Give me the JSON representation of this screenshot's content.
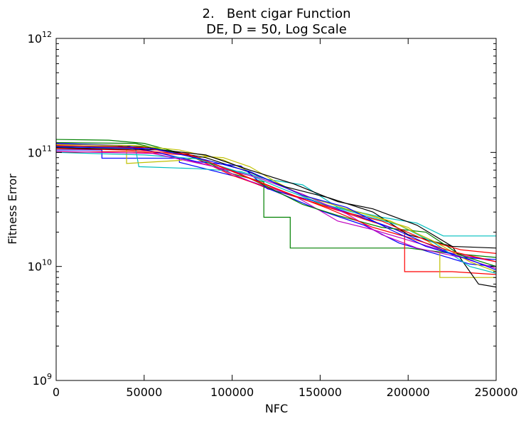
{
  "chart_data": {
    "type": "line",
    "title_line1": "2.   Bent cigar Function",
    "title_line2": "DE, D = 50, Log Scale",
    "xlabel": "NFC",
    "ylabel": "Fitness Error",
    "xlim": [
      0,
      250000
    ],
    "ylim": [
      1000000000,
      1000000000000
    ],
    "yscale": "log",
    "grid": false,
    "legend": "none",
    "x_ticks": [
      {
        "value": 0,
        "label": "0"
      },
      {
        "value": 50000,
        "label": "50000"
      },
      {
        "value": 100000,
        "label": "100000"
      },
      {
        "value": 150000,
        "label": "150000"
      },
      {
        "value": 200000,
        "label": "200000"
      },
      {
        "value": 250000,
        "label": "250000"
      }
    ],
    "y_ticks": [
      {
        "value": 1000000000,
        "base": "10",
        "exp": "9"
      },
      {
        "value": 10000000000,
        "base": "10",
        "exp": "10"
      },
      {
        "value": 100000000000,
        "base": "10",
        "exp": "11"
      },
      {
        "value": 1000000000000,
        "base": "10",
        "exp": "12"
      }
    ],
    "series": [
      {
        "color": "#0000ff",
        "points": [
          [
            0,
            105000000000.0
          ],
          [
            26000,
            105000000000.0
          ],
          [
            26000,
            89000000000.0
          ],
          [
            70000,
            89000000000.0
          ],
          [
            70000,
            82000000000.0
          ],
          [
            105000,
            60000000000.0
          ],
          [
            130000,
            42000000000.0
          ],
          [
            150000,
            31000000000.0
          ],
          [
            175000,
            23000000000.0
          ],
          [
            195000,
            16000000000.0
          ],
          [
            215000,
            13000000000.0
          ],
          [
            235000,
            10500000000.0
          ],
          [
            250000,
            10000000000.0
          ]
        ]
      },
      {
        "color": "#008000",
        "points": [
          [
            0,
            130000000000.0
          ],
          [
            30000,
            128000000000.0
          ],
          [
            50000,
            120000000000.0
          ],
          [
            80000,
            90000000000.0
          ],
          [
            100000,
            65000000000.0
          ],
          [
            118000,
            55000000000.0
          ],
          [
            118000,
            27000000000.0
          ],
          [
            133000,
            27000000000.0
          ],
          [
            133000,
            14500000000.0
          ],
          [
            200000,
            14500000000.0
          ],
          [
            225000,
            13000000000.0
          ],
          [
            250000,
            12000000000.0
          ]
        ]
      },
      {
        "color": "#ff0000",
        "points": [
          [
            0,
            100000000000.0
          ],
          [
            40000,
            102000000000.0
          ],
          [
            75000,
            95000000000.0
          ],
          [
            100000,
            63000000000.0
          ],
          [
            125000,
            46000000000.0
          ],
          [
            150000,
            35000000000.0
          ],
          [
            175000,
            26000000000.0
          ],
          [
            198000,
            20000000000.0
          ],
          [
            198000,
            9000000000.0
          ],
          [
            225000,
            9000000000.0
          ],
          [
            250000,
            8500000000.0
          ]
        ]
      },
      {
        "color": "#00bfbf",
        "points": [
          [
            0,
            112000000000.0
          ],
          [
            45000,
            110000000000.0
          ],
          [
            47000,
            75000000000.0
          ],
          [
            80000,
            72000000000.0
          ],
          [
            105000,
            68000000000.0
          ],
          [
            120000,
            58000000000.0
          ],
          [
            140000,
            52000000000.0
          ],
          [
            160000,
            33000000000.0
          ],
          [
            185000,
            27000000000.0
          ],
          [
            205000,
            24000000000.0
          ],
          [
            220000,
            18500000000.0
          ],
          [
            250000,
            18500000000.0
          ]
        ]
      },
      {
        "color": "#bf00bf",
        "points": [
          [
            0,
            118000000000.0
          ],
          [
            35000,
            115000000000.0
          ],
          [
            60000,
            98000000000.0
          ],
          [
            90000,
            75000000000.0
          ],
          [
            110000,
            56000000000.0
          ],
          [
            135000,
            42000000000.0
          ],
          [
            160000,
            25000000000.0
          ],
          [
            180000,
            21000000000.0
          ],
          [
            200000,
            17000000000.0
          ],
          [
            225000,
            13000000000.0
          ],
          [
            250000,
            11000000000.0
          ]
        ]
      },
      {
        "color": "#bfbf00",
        "points": [
          [
            0,
            110000000000.0
          ],
          [
            40000,
            105000000000.0
          ],
          [
            40000,
            80000000000.0
          ],
          [
            70000,
            85000000000.0
          ],
          [
            85000,
            92000000000.0
          ],
          [
            95000,
            90000000000.0
          ],
          [
            110000,
            75000000000.0
          ],
          [
            125000,
            55000000000.0
          ],
          [
            150000,
            35000000000.0
          ],
          [
            175000,
            29000000000.0
          ],
          [
            200000,
            22000000000.0
          ],
          [
            218000,
            14000000000.0
          ],
          [
            218000,
            8000000000.0
          ],
          [
            250000,
            8000000000.0
          ]
        ]
      },
      {
        "color": "#000000",
        "points": [
          [
            0,
            114000000000.0
          ],
          [
            50000,
            112000000000.0
          ],
          [
            85000,
            90000000000.0
          ],
          [
            110000,
            67000000000.0
          ],
          [
            130000,
            50000000000.0
          ],
          [
            155000,
            40000000000.0
          ],
          [
            180000,
            30000000000.0
          ],
          [
            200000,
            19000000000.0
          ],
          [
            225000,
            15000000000.0
          ],
          [
            240000,
            7000000000.0
          ],
          [
            250000,
            6600000000.0
          ]
        ]
      },
      {
        "color": "#0000ff",
        "points": [
          [
            0,
            120000000000.0
          ],
          [
            40000,
            115000000000.0
          ],
          [
            80000,
            83000000000.0
          ],
          [
            105000,
            76000000000.0
          ],
          [
            120000,
            48000000000.0
          ],
          [
            145000,
            38000000000.0
          ],
          [
            165000,
            30000000000.0
          ],
          [
            190000,
            22000000000.0
          ],
          [
            210000,
            16000000000.0
          ],
          [
            230000,
            12000000000.0
          ],
          [
            250000,
            11500000000.0
          ]
        ]
      },
      {
        "color": "#008000",
        "points": [
          [
            0,
            122000000000.0
          ],
          [
            45000,
            120000000000.0
          ],
          [
            75000,
            93000000000.0
          ],
          [
            100000,
            70000000000.0
          ],
          [
            120000,
            50000000000.0
          ],
          [
            140000,
            35000000000.0
          ],
          [
            160000,
            28000000000.0
          ],
          [
            185000,
            22000000000.0
          ],
          [
            210000,
            20000000000.0
          ],
          [
            230000,
            12500000000.0
          ],
          [
            250000,
            10000000000.0
          ]
        ]
      },
      {
        "color": "#ff0000",
        "points": [
          [
            0,
            108000000000.0
          ],
          [
            40000,
            105000000000.0
          ],
          [
            75000,
            97000000000.0
          ],
          [
            95000,
            73000000000.0
          ],
          [
            115000,
            55000000000.0
          ],
          [
            140000,
            39000000000.0
          ],
          [
            160000,
            31000000000.0
          ],
          [
            185000,
            25000000000.0
          ],
          [
            210000,
            17000000000.0
          ],
          [
            230000,
            14000000000.0
          ],
          [
            250000,
            13000000000.0
          ]
        ]
      },
      {
        "color": "#00bfbf",
        "points": [
          [
            0,
            100000000000.0
          ],
          [
            50000,
            95000000000.0
          ],
          [
            80000,
            88000000000.0
          ],
          [
            110000,
            63000000000.0
          ],
          [
            130000,
            47000000000.0
          ],
          [
            150000,
            36000000000.0
          ],
          [
            175000,
            28000000000.0
          ],
          [
            195000,
            23000000000.0
          ],
          [
            215000,
            16000000000.0
          ],
          [
            235000,
            10000000000.0
          ],
          [
            250000,
            8700000000.0
          ]
        ]
      },
      {
        "color": "#bf00bf",
        "points": [
          [
            0,
            102000000000.0
          ],
          [
            55000,
            98000000000.0
          ],
          [
            90000,
            75000000000.0
          ],
          [
            115000,
            60000000000.0
          ],
          [
            140000,
            43000000000.0
          ],
          [
            165000,
            29000000000.0
          ],
          [
            185000,
            19000000000.0
          ],
          [
            205000,
            14500000000.0
          ],
          [
            230000,
            12000000000.0
          ],
          [
            250000,
            9600000000.0
          ]
        ]
      },
      {
        "color": "#bfbf00",
        "points": [
          [
            0,
            117000000000.0
          ],
          [
            45000,
            115000000000.0
          ],
          [
            70000,
            105000000000.0
          ],
          [
            95000,
            86000000000.0
          ],
          [
            120000,
            58000000000.0
          ],
          [
            140000,
            42000000000.0
          ],
          [
            165000,
            32000000000.0
          ],
          [
            190000,
            25000000000.0
          ],
          [
            215000,
            16500000000.0
          ],
          [
            235000,
            11000000000.0
          ],
          [
            250000,
            9000000000.0
          ]
        ]
      },
      {
        "color": "#000000",
        "points": [
          [
            0,
            110000000000.0
          ],
          [
            60000,
            105000000000.0
          ],
          [
            85000,
            95000000000.0
          ],
          [
            110000,
            70000000000.0
          ],
          [
            135000,
            53000000000.0
          ],
          [
            160000,
            37000000000.0
          ],
          [
            180000,
            32000000000.0
          ],
          [
            205000,
            23000000000.0
          ],
          [
            225000,
            15000000000.0
          ],
          [
            250000,
            14500000000.0
          ]
        ]
      },
      {
        "color": "#ff0000",
        "points": [
          [
            0,
            115000000000.0
          ],
          [
            50000,
            110000000000.0
          ],
          [
            80000,
            91000000000.0
          ],
          [
            105000,
            64000000000.0
          ],
          [
            130000,
            45000000000.0
          ],
          [
            155000,
            32000000000.0
          ],
          [
            180000,
            22000000000.0
          ],
          [
            200000,
            18000000000.0
          ],
          [
            225000,
            13500000000.0
          ],
          [
            250000,
            11000000000.0
          ]
        ]
      },
      {
        "color": "#0000ff",
        "points": [
          [
            0,
            112000000000.0
          ],
          [
            55000,
            108000000000.0
          ],
          [
            85000,
            86000000000.0
          ],
          [
            110000,
            68000000000.0
          ],
          [
            140000,
            42000000000.0
          ],
          [
            165000,
            33000000000.0
          ],
          [
            190000,
            21000000000.0
          ],
          [
            210000,
            15000000000.0
          ],
          [
            235000,
            11500000000.0
          ],
          [
            250000,
            9300000000.0
          ]
        ]
      }
    ]
  }
}
